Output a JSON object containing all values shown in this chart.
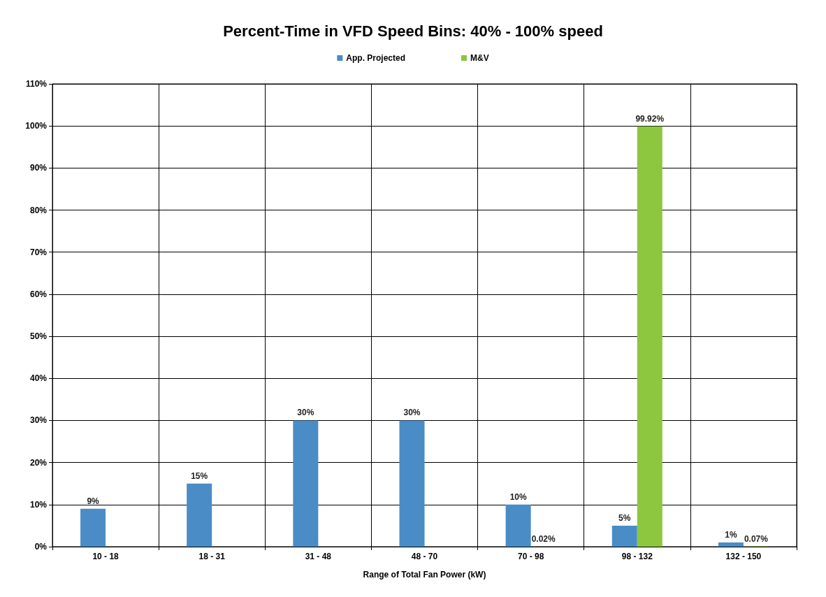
{
  "chart_data": {
    "type": "bar",
    "title": "Percent-Time in VFD Speed Bins: 40% - 100% speed",
    "xlabel": "Range of Total Fan Power (kW)",
    "categories": [
      "10 - 18",
      "18 - 31",
      "31 - 48",
      "48 - 70",
      "70 - 98",
      "98 - 132",
      "132 - 150"
    ],
    "series": [
      {
        "name": "App. Projected",
        "color": "#4a8cc6",
        "values": [
          9,
          15,
          30,
          30,
          10,
          5,
          1
        ],
        "value_labels": [
          "9%",
          "15%",
          "30%",
          "30%",
          "10%",
          "5%",
          "1%"
        ]
      },
      {
        "name": "M&V",
        "color": "#8dc63f",
        "values": [
          null,
          null,
          null,
          null,
          0.02,
          99.92,
          0.07
        ],
        "value_labels": [
          null,
          null,
          null,
          null,
          "0.02%",
          "99.92%",
          "0.07%"
        ]
      }
    ],
    "ylim": [
      0,
      110
    ],
    "yticks": [
      {
        "value": 0,
        "label": "0%"
      },
      {
        "value": 10,
        "label": "10%"
      },
      {
        "value": 20,
        "label": "20%"
      },
      {
        "value": 30,
        "label": "30%"
      },
      {
        "value": 40,
        "label": "40%"
      },
      {
        "value": 50,
        "label": "50%"
      },
      {
        "value": 60,
        "label": "60%"
      },
      {
        "value": 70,
        "label": "70%"
      },
      {
        "value": 80,
        "label": "80%"
      },
      {
        "value": 90,
        "label": "90%"
      },
      {
        "value": 100,
        "label": "100%"
      },
      {
        "value": 110,
        "label": "110%"
      }
    ],
    "grid": true,
    "legend": "top"
  }
}
